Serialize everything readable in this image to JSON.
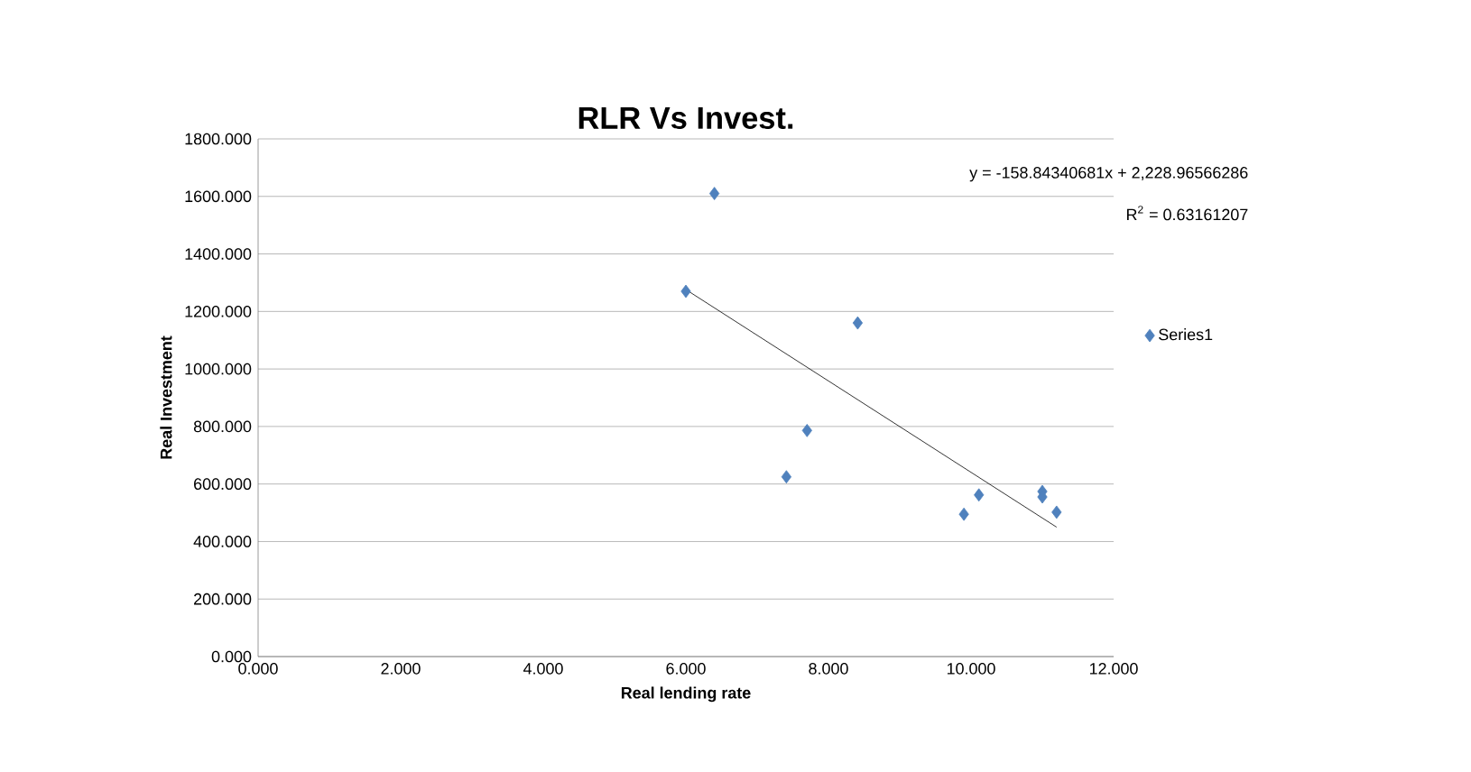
{
  "chart_data": {
    "type": "scatter",
    "title": "RLR Vs Invest.",
    "xlabel": "Real lending rate",
    "ylabel": "Real Investment",
    "xlim": [
      0,
      12
    ],
    "ylim": [
      0,
      1800
    ],
    "xticks": [
      {
        "value": 0,
        "label": "0.000"
      },
      {
        "value": 2,
        "label": "2.000"
      },
      {
        "value": 4,
        "label": "4.000"
      },
      {
        "value": 6,
        "label": "6.000"
      },
      {
        "value": 8,
        "label": "8.000"
      },
      {
        "value": 10,
        "label": "10.000"
      },
      {
        "value": 12,
        "label": "12.000"
      }
    ],
    "yticks": [
      {
        "value": 0,
        "label": "0.000"
      },
      {
        "value": 200,
        "label": "200.000"
      },
      {
        "value": 400,
        "label": "400.000"
      },
      {
        "value": 600,
        "label": "600.000"
      },
      {
        "value": 800,
        "label": "800.000"
      },
      {
        "value": 1000,
        "label": "1000.000"
      },
      {
        "value": 1200,
        "label": "1200.000"
      },
      {
        "value": 1400,
        "label": "1400.000"
      },
      {
        "value": 1600,
        "label": "1600.000"
      },
      {
        "value": 1800,
        "label": "1800.000"
      }
    ],
    "grid": "y",
    "legend": "right",
    "marker": "diamond",
    "series": [
      {
        "name": "Series1",
        "color": "#4f81bd",
        "x": [
          6.0,
          6.4,
          8.41,
          7.7,
          7.41,
          9.9,
          10.11,
          11.0,
          11.0,
          11.2
        ],
        "values": [
          1270,
          1610,
          1160,
          786,
          625,
          495,
          562,
          574,
          555,
          502
        ]
      },
      {
        "type": "line",
        "marker": "none",
        "color": "#000000",
        "x": [
          6.0,
          11.2
        ],
        "values": [
          1276,
          450
        ]
      }
    ],
    "annotations": [
      "y = -158.84340681x + 2,228.96566286",
      "R$^{2}$ = 0.63161207"
    ]
  }
}
